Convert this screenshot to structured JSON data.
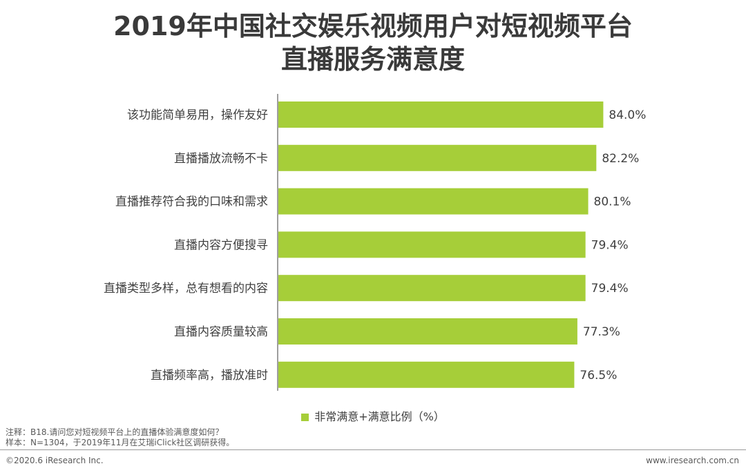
{
  "chart_data": {
    "type": "bar",
    "orientation": "horizontal",
    "title_line1": "2019年中国社交娱乐视频用户对短视频平台",
    "title_line2": "直播服务满意度",
    "categories": [
      "该功能简单易用，操作友好",
      "直播播放流畅不卡",
      "直播推荐符合我的口味和需求",
      "直播内容方便搜寻",
      "直播类型多样，总有想看的内容",
      "直播内容质量较高",
      "直播频率高，播放准时"
    ],
    "series": [
      {
        "name": "非常满意+满意比例（%）",
        "values": [
          84.0,
          82.2,
          80.1,
          79.4,
          79.4,
          77.3,
          76.5
        ],
        "labels": [
          "84.0%",
          "82.2%",
          "80.1%",
          "79.4%",
          "79.4%",
          "77.3%",
          "76.5%"
        ]
      }
    ],
    "xlim": [
      0,
      100
    ],
    "grid": false,
    "legend_position": "bottom",
    "bar_color": "#a6ce39"
  },
  "notes": {
    "line1": "注释：B18.请问您对短视频平台上的直播体验满意度如何？",
    "line2": "样本：N=1304，于2019年11月在艾瑞iClick社区调研获得。"
  },
  "footer": {
    "copyright": "©2020.6 iResearch Inc.",
    "website": "www.iresearch.com.cn"
  }
}
